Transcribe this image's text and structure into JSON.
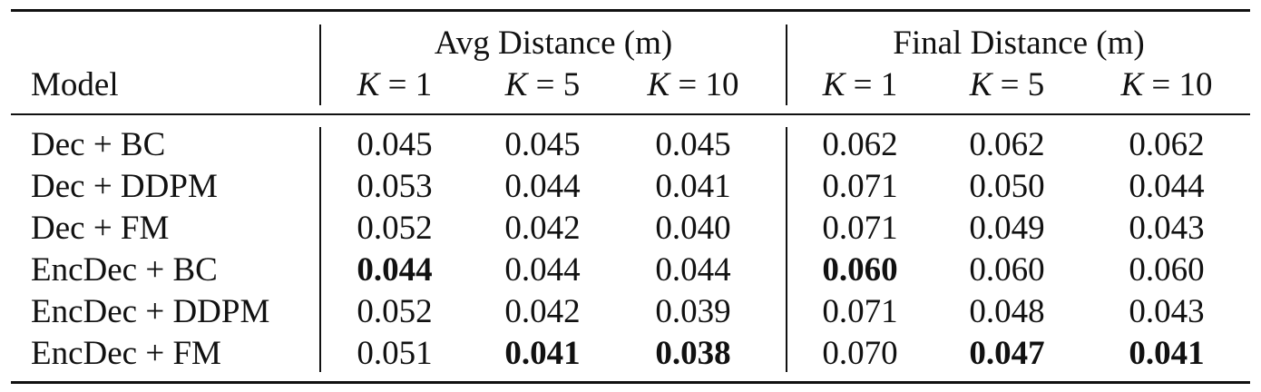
{
  "table": {
    "groups": [
      {
        "label": "Avg Distance (m)"
      },
      {
        "label": "Final Distance (m)"
      }
    ],
    "model_header": "Model",
    "k_headers": [
      {
        "var": "K",
        "rel": " = ",
        "val": "1"
      },
      {
        "var": "K",
        "rel": " = ",
        "val": "5"
      },
      {
        "var": "K",
        "rel": " = ",
        "val": "10"
      },
      {
        "var": "K",
        "rel": " = ",
        "val": "1"
      },
      {
        "var": "K",
        "rel": " = ",
        "val": "5"
      },
      {
        "var": "K",
        "rel": " = ",
        "val": "10"
      }
    ],
    "rows": [
      {
        "model": "Dec + BC",
        "values": [
          "0.045",
          "0.045",
          "0.045",
          "0.062",
          "0.062",
          "0.062"
        ],
        "bold": [
          false,
          false,
          false,
          false,
          false,
          false
        ]
      },
      {
        "model": "Dec + DDPM",
        "values": [
          "0.053",
          "0.044",
          "0.041",
          "0.071",
          "0.050",
          "0.044"
        ],
        "bold": [
          false,
          false,
          false,
          false,
          false,
          false
        ]
      },
      {
        "model": "Dec + FM",
        "values": [
          "0.052",
          "0.042",
          "0.040",
          "0.071",
          "0.049",
          "0.043"
        ],
        "bold": [
          false,
          false,
          false,
          false,
          false,
          false
        ]
      },
      {
        "model": "EncDec + BC",
        "values": [
          "0.044",
          "0.044",
          "0.044",
          "0.060",
          "0.060",
          "0.060"
        ],
        "bold": [
          true,
          false,
          false,
          true,
          false,
          false
        ]
      },
      {
        "model": "EncDec + DDPM",
        "values": [
          "0.052",
          "0.042",
          "0.039",
          "0.071",
          "0.048",
          "0.043"
        ],
        "bold": [
          false,
          false,
          false,
          false,
          false,
          false
        ]
      },
      {
        "model": "EncDec + FM",
        "values": [
          "0.051",
          "0.041",
          "0.038",
          "0.070",
          "0.047",
          "0.041"
        ],
        "bold": [
          false,
          true,
          true,
          false,
          true,
          true
        ]
      }
    ]
  }
}
